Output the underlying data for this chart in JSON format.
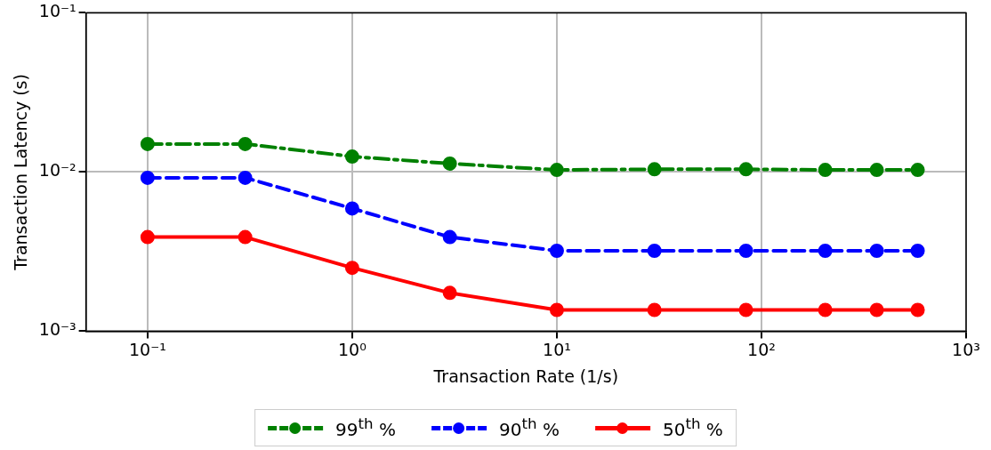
{
  "chart_data": {
    "type": "line",
    "xlabel": "Transaction Rate (1/s)",
    "ylabel": "Transaction Latency (s)",
    "log": "xy",
    "grid": true,
    "legend": "bottom",
    "marker": "circle",
    "xlim": [
      0.05,
      1000
    ],
    "xticks": [
      {
        "value": 0.1,
        "label": "10⁻¹"
      },
      {
        "value": 1,
        "label": "10⁰"
      },
      {
        "value": 10,
        "label": "10¹"
      },
      {
        "value": 100,
        "label": "10²"
      },
      {
        "value": 1000,
        "label": "10³"
      }
    ],
    "ylim": [
      0.001,
      0.1
    ],
    "yticks": [
      {
        "value": 0.001,
        "label": "10⁻³"
      },
      {
        "value": 0.01,
        "label": "10⁻²"
      },
      {
        "value": 0.1,
        "label": "10⁻¹"
      }
    ],
    "x": [
      0.1,
      0.3,
      1,
      3,
      10,
      30,
      84,
      205,
      366,
      580
    ],
    "series": [
      {
        "name": "99$^{th}$ %",
        "color": "#008000",
        "line_style": "dashdot",
        "values": [
          0.015,
          0.015,
          0.0125,
          0.0113,
          0.0103,
          0.0104,
          0.0104,
          0.0103,
          0.0103,
          0.0103
        ]
      },
      {
        "name": "90$^{th}$ %",
        "color": "#0000ff",
        "line_style": "dashed",
        "values": [
          0.0092,
          0.0092,
          0.0059,
          0.0039,
          0.0032,
          0.0032,
          0.0032,
          0.0032,
          0.0032,
          0.0032
        ]
      },
      {
        "name": "50$^{th}$ %",
        "color": "#ff0000",
        "line_style": "solid",
        "values": [
          0.0039,
          0.0039,
          0.0025,
          0.00174,
          0.00136,
          0.00136,
          0.00136,
          0.00136,
          0.00136,
          0.00136
        ]
      }
    ]
  }
}
